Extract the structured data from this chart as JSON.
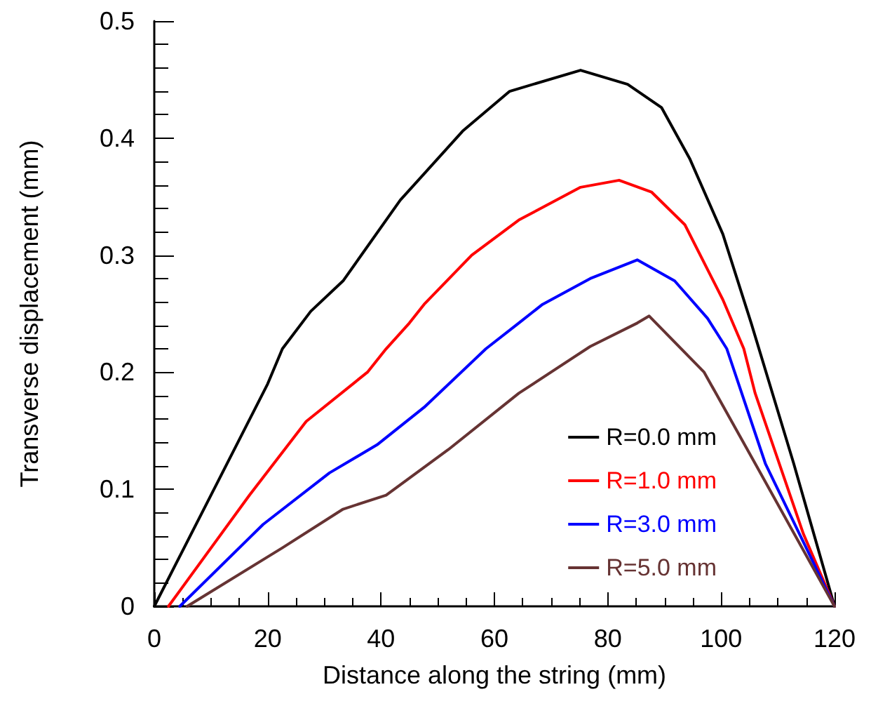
{
  "chart_data": {
    "type": "line",
    "xlabel": "Distance along the string (mm)",
    "ylabel": "Transverse displacement (mm)",
    "xlim": [
      0,
      120
    ],
    "xticks": [
      0,
      20,
      40,
      60,
      80,
      100,
      120
    ],
    "ylim": [
      0,
      0.5
    ],
    "yticks": [
      0,
      0.1,
      0.2,
      0.3,
      0.4,
      0.5
    ],
    "grid": false,
    "legend": "bottom right",
    "marker": "none",
    "line_style": "solid",
    "series": [
      {
        "name": "R=0.0 mm",
        "color": "#000000",
        "x": [
          0,
          10,
          20,
          22.6,
          27.6,
          33.3,
          43.4,
          54.4,
          62.7,
          75.2,
          83.5,
          89.5,
          94.5,
          100.3,
          105.3,
          112.8,
          120
        ],
        "values": [
          0,
          0.095,
          0.19,
          0.22,
          0.252,
          0.278,
          0.347,
          0.406,
          0.44,
          0.458,
          0.446,
          0.426,
          0.382,
          0.318,
          0.242,
          0.122,
          0
        ]
      },
      {
        "name": "R=1.0 mm",
        "color": "#ff0000",
        "x": [
          2.5,
          16.8,
          26.8,
          37.6,
          40.9,
          45,
          47.6,
          56,
          64.3,
          75.2,
          82,
          87.7,
          93.6,
          100.3,
          104,
          106,
          114.5,
          120
        ],
        "values": [
          0,
          0.095,
          0.158,
          0.2,
          0.22,
          0.242,
          0.258,
          0.3,
          0.33,
          0.358,
          0.364,
          0.354,
          0.326,
          0.262,
          0.22,
          0.182,
          0.062,
          0
        ]
      },
      {
        "name": "R=3.0 mm",
        "color": "#0000ff",
        "x": [
          4.5,
          19.2,
          30.9,
          39.3,
          47.6,
          58.5,
          64.3,
          68.5,
          76.9,
          85.2,
          91.8,
          97.6,
          101,
          107.8,
          120
        ],
        "values": [
          0,
          0.07,
          0.114,
          0.138,
          0.17,
          0.22,
          0.242,
          0.258,
          0.28,
          0.296,
          0.278,
          0.246,
          0.22,
          0.122,
          0
        ]
      },
      {
        "name": "R=5.0 mm",
        "color": "#663333",
        "x": [
          5.8,
          22.6,
          33.3,
          40.9,
          51.9,
          64.3,
          76.9,
          85.2,
          87.3,
          97,
          106,
          120
        ],
        "values": [
          0,
          0.05,
          0.083,
          0.095,
          0.134,
          0.182,
          0.222,
          0.242,
          0.248,
          0.2,
          0.122,
          0
        ]
      }
    ]
  }
}
